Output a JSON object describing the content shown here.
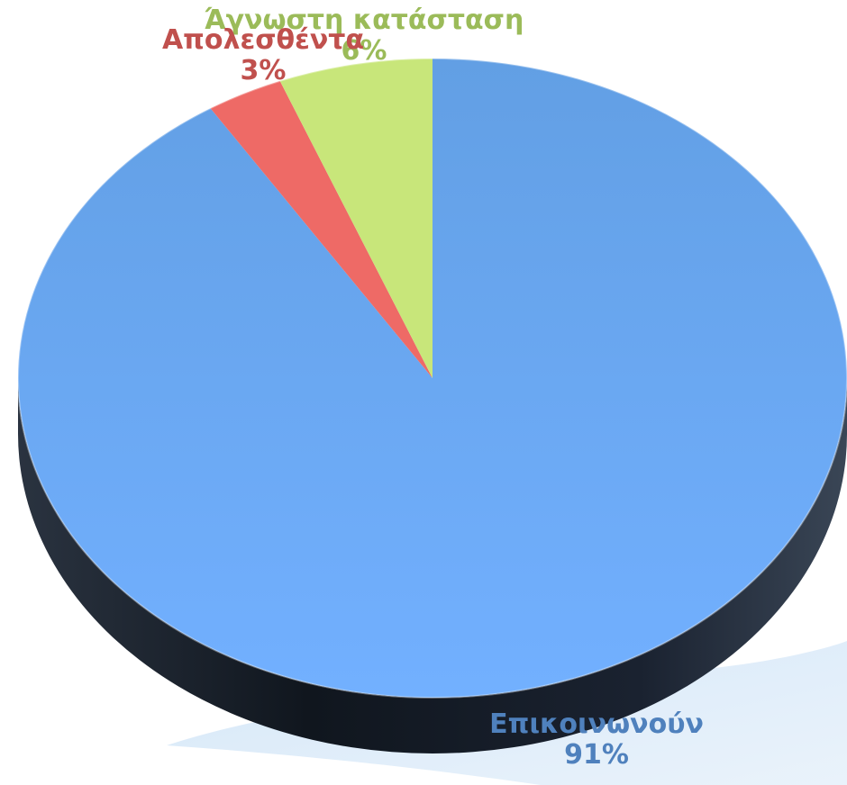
{
  "chart_data": {
    "type": "pie",
    "categories": [
      "Επικοινωνούν",
      "Απολεσθέντα",
      "Άγνωστη κατάσταση"
    ],
    "values": [
      91,
      3,
      6
    ],
    "value_unit": "%",
    "colors": [
      "#6aa6ee",
      "#ee6a66",
      "#c8e67a"
    ],
    "label_colors": [
      "#4f81bd",
      "#c0504d",
      "#9bbb59"
    ],
    "start_angle_deg": 0,
    "direction": "clockwise",
    "style": "3d-tilted",
    "legend": "none",
    "labels": {
      "communicating": {
        "name": "Επικοινωνούν",
        "value": "91%"
      },
      "lost": {
        "name": "Απολεσθέντα",
        "value": "3%"
      },
      "unknown": {
        "name": "Άγνωστη κατάσταση",
        "value": "6%"
      }
    }
  }
}
